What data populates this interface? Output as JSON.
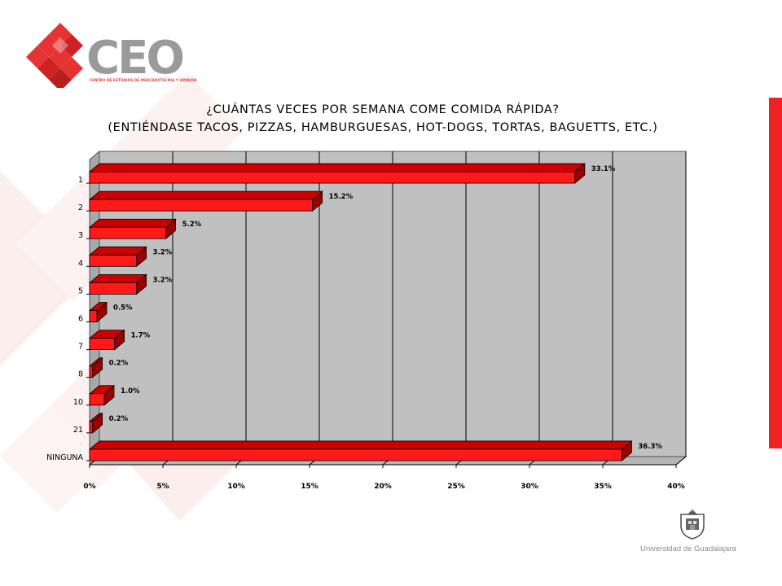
{
  "logo": {
    "name": "CEO",
    "subtitle": "CENTRO DE ESTUDIOS DE MERCADOTECNIA Y OPINIÓN"
  },
  "institution": {
    "name": "Universidad de Guadalajara"
  },
  "colors": {
    "bar_front": "#ff1a1a",
    "bar_top": "#cc0000",
    "bar_side": "#990000",
    "plot_back": "#c0c0c0",
    "accent": "#ee2222"
  },
  "chart_data": {
    "type": "bar",
    "orientation": "horizontal",
    "style": "3d",
    "title": "¿CUÁNTAS VECES POR SEMANA COME COMIDA RÁPIDA?",
    "subtitle": "(ENTIÉNDASE TACOS, PIZZAS, HAMBURGUESAS, HOT-DOGS, TORTAS, BAGUETTS, ETC.)",
    "categories": [
      "1",
      "2",
      "3",
      "4",
      "5",
      "6",
      "7",
      "8",
      "10",
      "21",
      "NINGUNA"
    ],
    "values": [
      33.1,
      15.2,
      5.2,
      3.2,
      3.2,
      0.5,
      1.7,
      0.2,
      1.0,
      0.2,
      36.3
    ],
    "data_labels": [
      "33.1%",
      "15.2%",
      "5.2%",
      "3.2%",
      "3.2%",
      "0.5%",
      "1.7%",
      "0.2%",
      "1.0%",
      "0.2%",
      "36.3%"
    ],
    "x_ticks": [
      "0%",
      "5%",
      "10%",
      "15%",
      "20%",
      "25%",
      "30%",
      "35%",
      "40%"
    ],
    "xlim": [
      0,
      40
    ],
    "grid": true,
    "legend": "none"
  }
}
